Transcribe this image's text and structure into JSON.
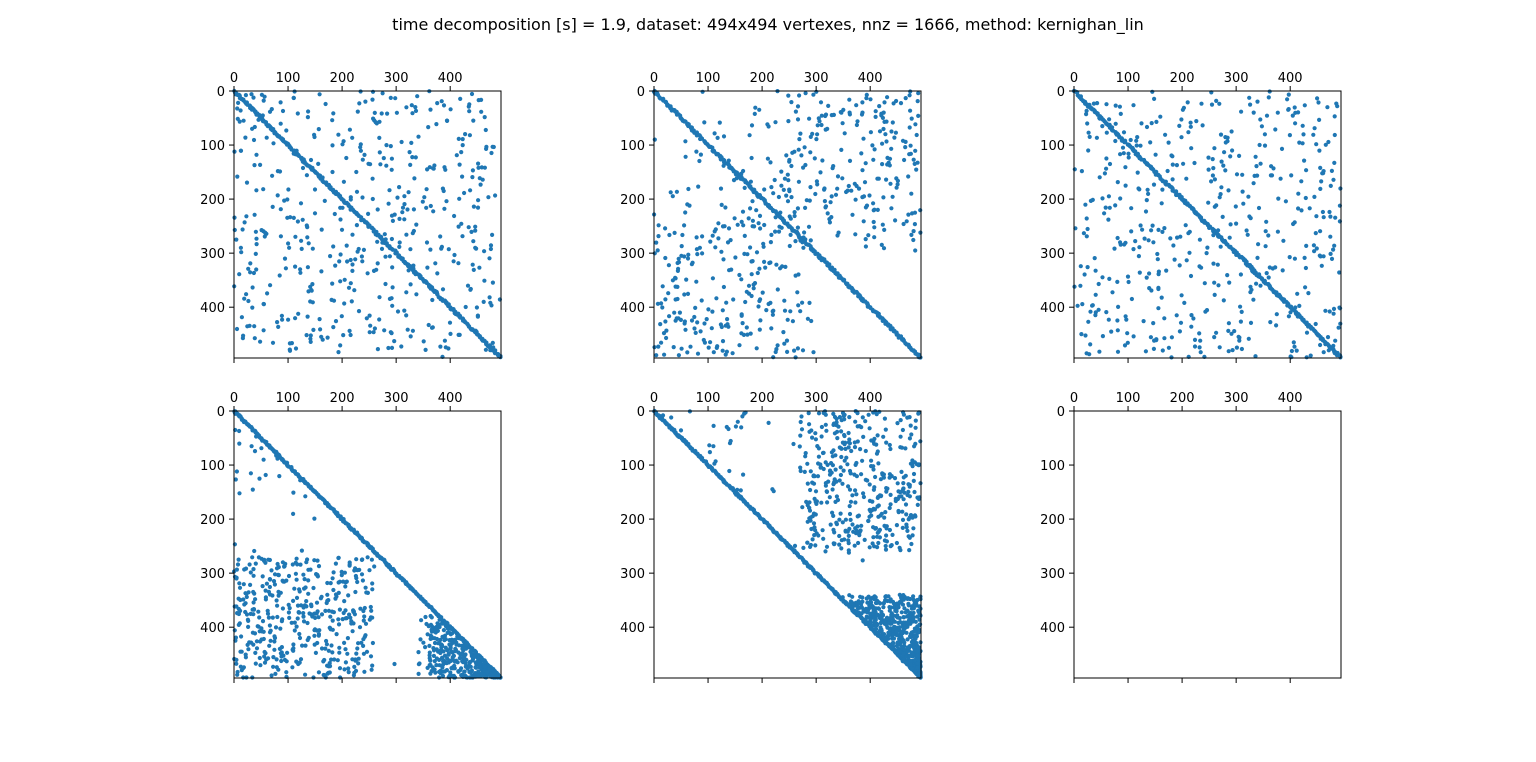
{
  "figure": {
    "title": "time decomposition [s] = 1.9, dataset: 494x494 vertexes, nnz = 1666, method: kernighan_lin"
  },
  "chart_data": [
    {
      "type": "scatter",
      "pattern": "original",
      "xticks": [
        0,
        100,
        200,
        300,
        400
      ],
      "yticks": [
        0,
        100,
        200,
        300,
        400
      ],
      "xlim": [
        0,
        494
      ],
      "ylim": [
        494,
        0
      ],
      "matrix_size": 494,
      "series": [
        {
          "color": "#1f77b4",
          "values": [
            [
              0,
              0
            ],
            [
              60,
              65
            ],
            [
              120,
              128
            ],
            [
              250,
              255
            ],
            [
              400,
              410
            ],
            [
              52,
              12
            ],
            [
              150,
              40
            ],
            [
              300,
              22
            ],
            [
              440,
              8
            ],
            [
              12,
              150
            ],
            [
              110,
              200
            ],
            [
              200,
              280
            ],
            [
              330,
              360
            ],
            [
              15,
              430
            ],
            [
              470,
              300
            ]
          ]
        }
      ]
    },
    {
      "type": "scatter",
      "pattern": "blocked",
      "xticks": [
        0,
        100,
        200,
        300,
        400
      ],
      "yticks": [
        0,
        100,
        200,
        300,
        400
      ],
      "xlim": [
        0,
        494
      ],
      "ylim": [
        494,
        0
      ],
      "matrix_size": 494,
      "series": [
        {
          "color": "#1f77b4",
          "values": [
            [
              0,
              0
            ],
            [
              120,
              125
            ],
            [
              260,
              265
            ],
            [
              400,
              410
            ],
            [
              140,
              20
            ],
            [
              130,
              60
            ],
            [
              60,
              140
            ],
            [
              330,
              40
            ],
            [
              420,
              150
            ],
            [
              300,
              250
            ],
            [
              40,
              420
            ],
            [
              200,
              400
            ],
            [
              150,
              480
            ],
            [
              470,
              300
            ],
            [
              380,
              130
            ]
          ]
        }
      ]
    },
    {
      "type": "scatter",
      "pattern": "original",
      "xticks": [
        0,
        100,
        200,
        300,
        400
      ],
      "yticks": [
        0,
        100,
        200,
        300,
        400
      ],
      "xlim": [
        0,
        494
      ],
      "ylim": [
        494,
        0
      ],
      "matrix_size": 494,
      "series": [
        {
          "color": "#1f77b4",
          "values": [
            [
              0,
              0
            ],
            [
              60,
              65
            ],
            [
              120,
              128
            ],
            [
              250,
              255
            ],
            [
              400,
              410
            ],
            [
              52,
              12
            ],
            [
              150,
              40
            ],
            [
              300,
              22
            ],
            [
              440,
              8
            ],
            [
              12,
              150
            ],
            [
              110,
              200
            ],
            [
              200,
              280
            ],
            [
              330,
              360
            ],
            [
              15,
              430
            ],
            [
              470,
              300
            ]
          ]
        }
      ]
    },
    {
      "type": "scatter",
      "pattern": "lower",
      "xticks": [
        0,
        100,
        200,
        300,
        400
      ],
      "yticks": [
        0,
        100,
        200,
        300,
        400
      ],
      "xlim": [
        0,
        494
      ],
      "ylim": [
        494,
        0
      ],
      "matrix_size": 494,
      "series": [
        {
          "color": "#1f77b4",
          "values": [
            [
              0,
              0
            ],
            [
              100,
              100
            ],
            [
              250,
              252
            ],
            [
              400,
              402
            ],
            [
              20,
              140
            ],
            [
              100,
              150
            ],
            [
              180,
              300
            ],
            [
              40,
              340
            ],
            [
              200,
              420
            ],
            [
              350,
              470
            ],
            [
              420,
              450
            ],
            [
              460,
              480
            ],
            [
              10,
              470
            ],
            [
              300,
              410
            ],
            [
              380,
              440
            ]
          ]
        }
      ]
    },
    {
      "type": "scatter",
      "pattern": "upper",
      "xticks": [
        0,
        100,
        200,
        300,
        400
      ],
      "yticks": [
        0,
        100,
        200,
        300,
        400
      ],
      "xlim": [
        0,
        494
      ],
      "ylim": [
        494,
        0
      ],
      "matrix_size": 494,
      "series": [
        {
          "color": "#1f77b4",
          "values": [
            [
              0,
              0
            ],
            [
              100,
              100
            ],
            [
              250,
              252
            ],
            [
              400,
              402
            ],
            [
              140,
              10
            ],
            [
              150,
              80
            ],
            [
              300,
              200
            ],
            [
              340,
              40
            ],
            [
              420,
              150
            ],
            [
              470,
              350
            ],
            [
              450,
              420
            ],
            [
              480,
              460
            ],
            [
              470,
              10
            ],
            [
              400,
              300
            ],
            [
              440,
              380
            ]
          ]
        }
      ]
    },
    {
      "type": "scatter",
      "pattern": "empty",
      "xticks": [
        0,
        100,
        200,
        300,
        400
      ],
      "yticks": [
        0,
        100,
        200,
        300,
        400
      ],
      "xlim": [
        0,
        494
      ],
      "ylim": [
        494,
        0
      ],
      "matrix_size": 494,
      "series": []
    }
  ]
}
